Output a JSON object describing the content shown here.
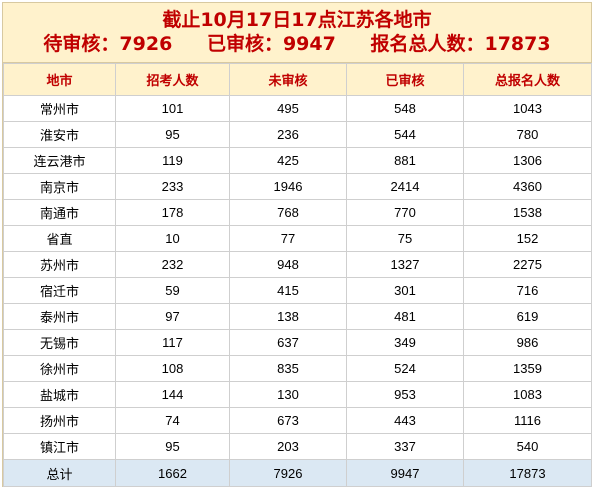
{
  "title": "截止10月17日17点江苏各地市",
  "summary": [
    {
      "label": "待审核：",
      "value": "7926"
    },
    {
      "label": "已审核：",
      "value": "9947"
    },
    {
      "label": "报名总人数：",
      "value": "17873"
    }
  ],
  "header": [
    "地市",
    "招考人数",
    "未审核",
    "已审核",
    "总报名人数"
  ],
  "rows": [
    [
      "常州市",
      "101",
      "495",
      "548",
      "1043"
    ],
    [
      "淮安市",
      "95",
      "236",
      "544",
      "780"
    ],
    [
      "连云港市",
      "119",
      "425",
      "881",
      "1306"
    ],
    [
      "南京市",
      "233",
      "1946",
      "2414",
      "4360"
    ],
    [
      "南通市",
      "178",
      "768",
      "770",
      "1538"
    ],
    [
      "省直",
      "10",
      "77",
      "75",
      "152"
    ],
    [
      "苏州市",
      "232",
      "948",
      "1327",
      "2275"
    ],
    [
      "宿迁市",
      "59",
      "415",
      "301",
      "716"
    ],
    [
      "泰州市",
      "97",
      "138",
      "481",
      "619"
    ],
    [
      "无锡市",
      "117",
      "637",
      "349",
      "986"
    ],
    [
      "徐州市",
      "108",
      "835",
      "524",
      "1359"
    ],
    [
      "盐城市",
      "144",
      "130",
      "953",
      "1083"
    ],
    [
      "扬州市",
      "74",
      "673",
      "443",
      "1116"
    ],
    [
      "镇江市",
      "95",
      "203",
      "337",
      "540"
    ]
  ],
  "total": [
    "总计",
    "1662",
    "7926",
    "9947",
    "17873"
  ],
  "colors": {
    "header_bg": "#fff2cc",
    "header_text": "#c00000",
    "total_bg": "#dbe8f3"
  }
}
